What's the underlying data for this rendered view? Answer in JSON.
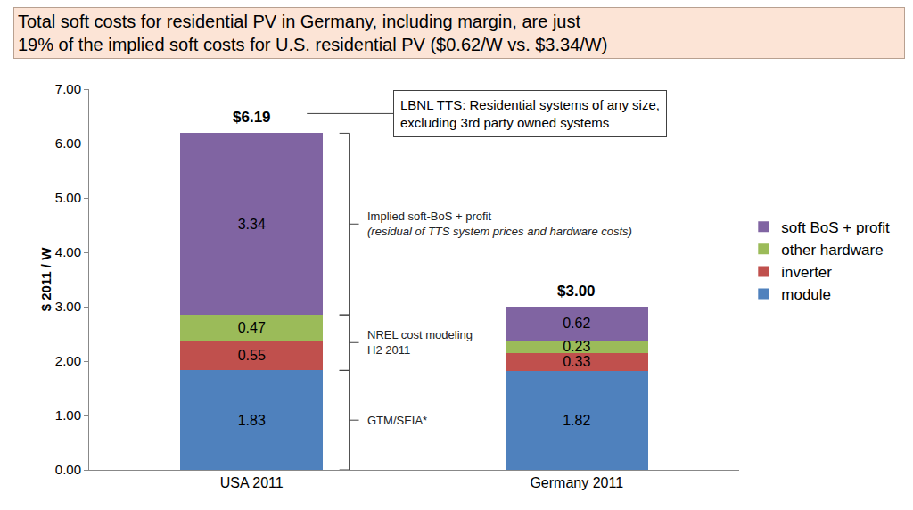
{
  "chart_data": {
    "type": "bar",
    "stacked": true,
    "data_labels": true,
    "grid": false,
    "legend": "right",
    "title": "Total soft costs for residential PV in Germany, including margin, are just\n19% of the implied soft costs for U.S. residential PV ($0.62/W vs. $3.34/W)",
    "ylabel": "$ 2011 / W",
    "categories": [
      "USA 2011",
      "Germany 2011"
    ],
    "series": [
      {
        "name": "module",
        "color": "#4f81bd",
        "values": [
          1.83,
          1.82
        ]
      },
      {
        "name": "inverter",
        "color": "#c0504d",
        "values": [
          0.55,
          0.33
        ]
      },
      {
        "name": "other hardware",
        "color": "#9bbb59",
        "values": [
          0.47,
          0.23
        ]
      },
      {
        "name": "soft BoS + profit",
        "color": "#8064a2",
        "values": [
          3.34,
          0.62
        ]
      }
    ],
    "totals": [
      6.19,
      3.0
    ],
    "total_labels": [
      "$6.19",
      "$3.00"
    ],
    "ylim": [
      0,
      7
    ],
    "yticks": [
      {
        "value": 0,
        "label": "0.00"
      },
      {
        "value": 1,
        "label": "1.00"
      },
      {
        "value": 2,
        "label": "2.00"
      },
      {
        "value": 3,
        "label": "3.00"
      },
      {
        "value": 4,
        "label": "4.00"
      },
      {
        "value": 5,
        "label": "5.00"
      },
      {
        "value": 6,
        "label": "6.00"
      },
      {
        "value": 7,
        "label": "7.00"
      }
    ],
    "annotations": [
      {
        "text": "LBNL TTS: Residential systems of any size,\nexcluding 3rd party owned systems",
        "category": "USA 2011"
      },
      {
        "text": "Implied soft-BoS + profit",
        "subtext": "(residual of TTS system prices and hardware costs)",
        "category": "USA 2011",
        "series": [
          "soft BoS + profit"
        ]
      },
      {
        "text": "NREL cost modeling\nH2 2011",
        "category": "USA 2011",
        "series": [
          "inverter",
          "other hardware"
        ]
      },
      {
        "text": "GTM/SEIA*",
        "category": "USA 2011",
        "series": [
          "module"
        ]
      }
    ]
  }
}
